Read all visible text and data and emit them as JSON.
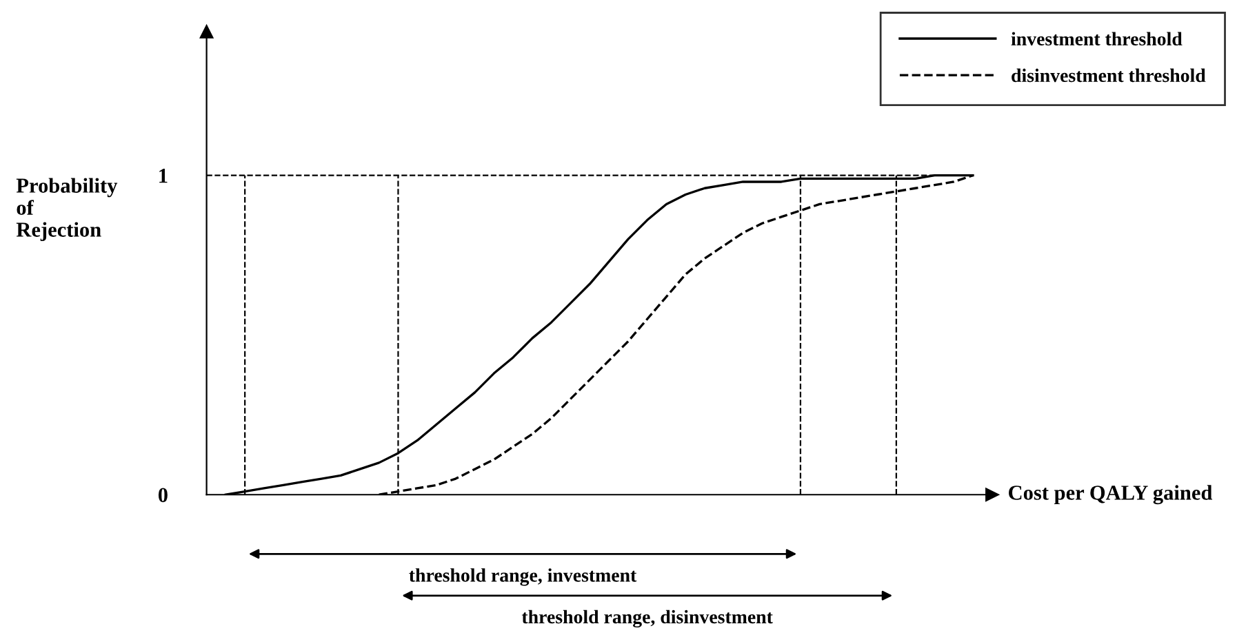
{
  "chart_data": {
    "type": "line",
    "ylabel": "Probability\nof\nRejection",
    "xlabel": "Cost per QALY gained",
    "categories": [
      null,
      null,
      null,
      null,
      null,
      null,
      null,
      null,
      null,
      null,
      null,
      null,
      null,
      null,
      null,
      null,
      null,
      null,
      null,
      null,
      null,
      null,
      null,
      null,
      null,
      null,
      null,
      null,
      null,
      null,
      null,
      null,
      null,
      null,
      null,
      null,
      null,
      null,
      null,
      null,
      null
    ],
    "series": [
      {
        "name": "investment threshold",
        "color": "#000000",
        "line_style": "solid",
        "values": [
          null,
          0.0,
          0.01,
          0.02,
          0.03,
          0.04,
          0.05,
          0.06,
          0.08,
          0.1,
          0.13,
          0.17,
          0.22,
          0.27,
          0.32,
          0.38,
          0.43,
          0.49,
          0.54,
          0.6,
          0.66,
          0.73,
          0.8,
          0.86,
          0.91,
          0.94,
          0.96,
          0.97,
          0.98,
          0.98,
          0.98,
          0.99,
          0.99,
          0.99,
          0.99,
          0.99,
          0.99,
          0.99,
          1.0,
          1.0,
          1.0
        ]
      },
      {
        "name": "disinvestment threshold",
        "color": "#000000",
        "line_style": "dashed",
        "values": [
          null,
          null,
          null,
          null,
          null,
          null,
          null,
          null,
          null,
          0.0,
          0.01,
          0.02,
          0.03,
          0.05,
          0.08,
          0.11,
          0.15,
          0.19,
          0.24,
          0.3,
          0.36,
          0.42,
          0.48,
          0.55,
          0.62,
          0.69,
          0.74,
          0.78,
          0.82,
          0.85,
          0.87,
          0.89,
          0.91,
          0.92,
          0.93,
          0.94,
          0.95,
          0.96,
          0.97,
          0.98,
          1.0
        ]
      }
    ],
    "ylim": [
      0,
      1.45
    ],
    "yticks": [
      0,
      1
    ],
    "tick_labels": "y",
    "grid": false,
    "legend": "top right",
    "marker": "none",
    "ref_lines": [
      {
        "axis": "y",
        "value": 1,
        "color": "#000000",
        "line_style": "dashed"
      }
    ],
    "annotations": [
      "threshold range, investment",
      "threshold range, disinvestment"
    ]
  }
}
